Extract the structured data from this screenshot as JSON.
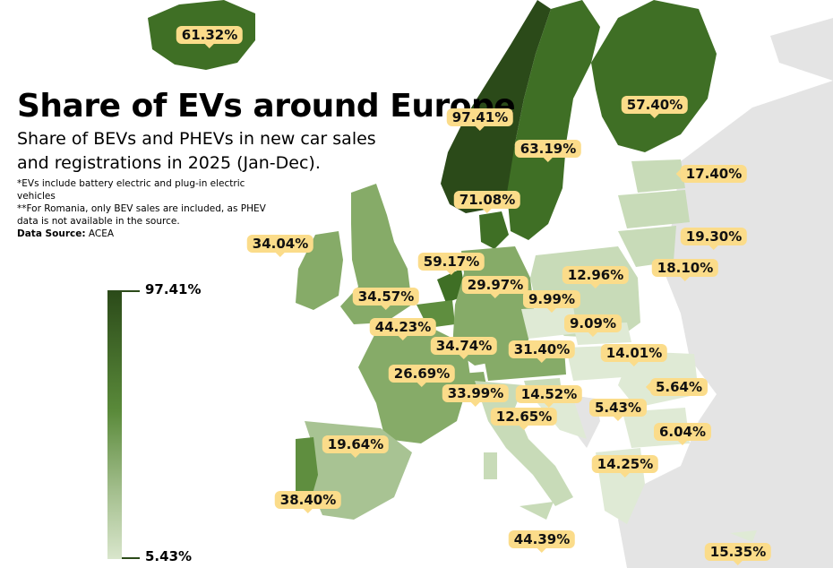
{
  "header": {
    "title": "Share of EVs around Europe",
    "subtitle": "Share of BEVs and PHEVs in new car sales and registrations in 2025 (Jan-Dec).",
    "note_ev": "*EVs include battery electric and plug-in electric vehicles",
    "note_romania": "**For Romania, only BEV sales are included, as PHEV data is not available in the source.",
    "source_label": "Data Source:",
    "source_value": "ACEA"
  },
  "legend": {
    "max_label": "97.41%",
    "min_label": "5.43%"
  },
  "colors": {
    "darkest": "#2b4a19",
    "dark": "#3f6f25",
    "mid_dark": "#5f8e3f",
    "mid": "#86ab68",
    "mid_light": "#a8c393",
    "light": "#c8dbb8",
    "lightest": "#dfead5",
    "non_data": "#e4e4e4",
    "label_bg": "#fbdc8a"
  },
  "labels": [
    "61.32%",
    "97.41%",
    "57.40%",
    "63.19%",
    "17.40%",
    "71.08%",
    "19.30%",
    "34.04%",
    "59.17%",
    "18.10%",
    "29.97%",
    "12.96%",
    "34.57%",
    "9.99%",
    "44.23%",
    "9.09%",
    "34.74%",
    "31.40%",
    "14.01%",
    "26.69%",
    "5.64%",
    "33.99%",
    "14.52%",
    "5.43%",
    "12.65%",
    "6.04%",
    "19.64%",
    "14.25%",
    "38.40%",
    "44.39%",
    "15.35%"
  ]
}
